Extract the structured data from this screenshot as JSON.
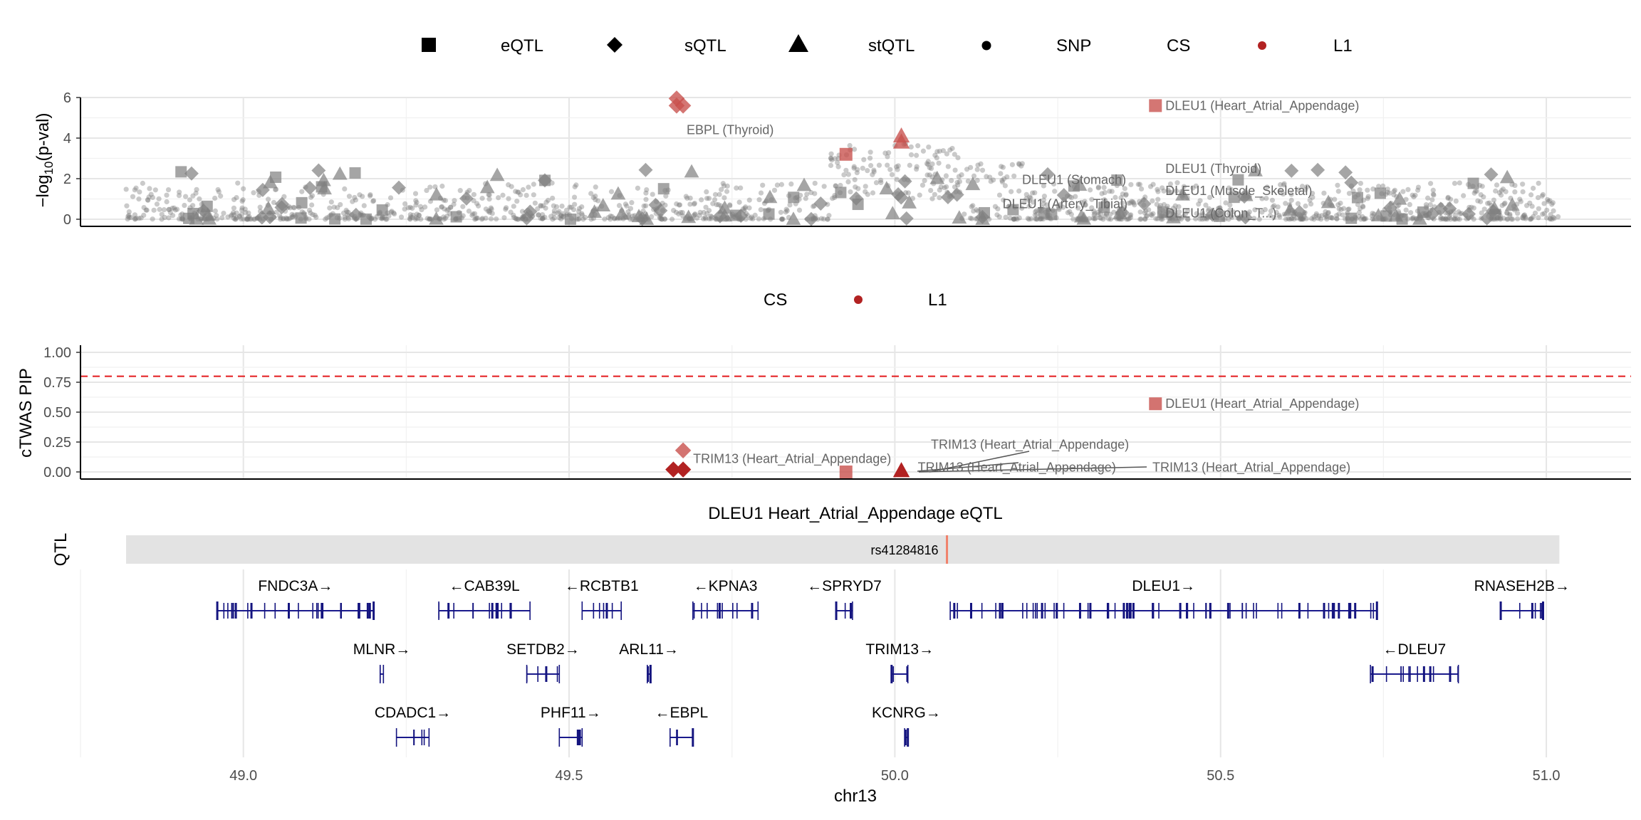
{
  "chart_data": [
    {
      "type": "scatter",
      "panel": "qtl",
      "ylabel": "−log10(p-val)",
      "ylim": [
        0,
        6
      ],
      "y_ticks": [
        0,
        2,
        4,
        6
      ],
      "legend": {
        "shapes": [
          {
            "shape": "square",
            "label": "eQTL"
          },
          {
            "shape": "diamond",
            "label": "sQTL"
          },
          {
            "shape": "triangle",
            "label": "stQTL"
          },
          {
            "shape": "circle",
            "label": "SNP"
          }
        ],
        "cs_title": "CS",
        "cs_items": [
          {
            "label": "L1",
            "color": "#b22222"
          }
        ]
      },
      "highlighted": [
        {
          "x": 49.665,
          "y": 5.95,
          "shape": "diamond",
          "cs": "L1"
        },
        {
          "x": 49.675,
          "y": 5.6,
          "shape": "diamond",
          "cs": "L1"
        },
        {
          "x": 49.665,
          "y": 5.6,
          "shape": "diamond",
          "cs": "L1"
        },
        {
          "x": 49.925,
          "y": 3.2,
          "shape": "square",
          "cs": "L1"
        },
        {
          "x": 50.01,
          "y": 4.1,
          "shape": "triangle",
          "cs": "L1"
        },
        {
          "x": 50.01,
          "y": 3.8,
          "shape": "triangle",
          "cs": "L1"
        },
        {
          "x": 50.4,
          "y": 5.6,
          "shape": "square",
          "cs": "L1"
        }
      ],
      "labels": [
        {
          "x": 50.4,
          "y": 5.6,
          "text": "DLEU1 (Heart_Atrial_Appendage)"
        },
        {
          "x": 49.665,
          "y": 4.4,
          "text": "EBPL (Thyroid)"
        },
        {
          "x": 50.4,
          "y": 2.5,
          "text": "DLEU1 (Thyroid)"
        },
        {
          "x": 50.4,
          "y": 1.4,
          "text": "DLEU1 (Muscle_Skeletal)"
        },
        {
          "x": 50.4,
          "y": 0.3,
          "text": "DLEU1 (Colon_T...)"
        },
        {
          "x": 50.18,
          "y": 1.95,
          "text": "DLEU1 (Stomach)"
        },
        {
          "x": 50.15,
          "y": 0.75,
          "text": "DLEU1 (Artery_Tibial)"
        }
      ]
    },
    {
      "type": "scatter",
      "panel": "ctwas",
      "ylabel": "cTWAS PIP",
      "ylim": [
        0,
        1
      ],
      "y_ticks": [
        "0.00",
        "0.25",
        "0.50",
        "0.75",
        "1.00"
      ],
      "threshold": 0.8,
      "threshold_color": "#e31a1c",
      "legend": {
        "cs_title": "CS",
        "cs_items": [
          {
            "label": "L1",
            "color": "#b22222"
          }
        ]
      },
      "points": [
        {
          "x": 49.675,
          "y": 0.18,
          "shape": "diamond",
          "cs": "L1"
        },
        {
          "x": 49.66,
          "y": 0.02,
          "shape": "diamond",
          "cs": "L1"
        },
        {
          "x": 49.675,
          "y": 0.02,
          "shape": "diamond",
          "cs": "L1"
        },
        {
          "x": 49.925,
          "y": 0.0,
          "shape": "square",
          "cs": "L1"
        },
        {
          "x": 50.01,
          "y": 0.01,
          "shape": "triangle",
          "cs": "L1"
        },
        {
          "x": 50.4,
          "y": 0.57,
          "shape": "square",
          "cs": "L1"
        }
      ],
      "labels": [
        {
          "x": 50.4,
          "y": 0.57,
          "text": "DLEU1 (Heart_Atrial_Appendage)"
        },
        {
          "x": 49.675,
          "y": 0.11,
          "text": "TRIM13 (Heart_Atrial_Appendage)"
        },
        {
          "x": 50.04,
          "y": 0.23,
          "text": "TRIM13 (Heart_Atrial_Appendage)"
        },
        {
          "x": 50.02,
          "y": 0.04,
          "text": "TRIM13 (Heart_Atrial_Appendage)"
        },
        {
          "x": 50.38,
          "y": 0.04,
          "text": "TRIM13 (Heart_Atrial_Appendage)"
        }
      ]
    },
    {
      "type": "track",
      "panel": "qtl-track",
      "title": "DLEU1 Heart_Atrial_Appendage eQTL",
      "ylabel": "QTL",
      "range": [
        48.82,
        51.02
      ],
      "snp": {
        "x": 50.08,
        "label": "rs41284816"
      }
    },
    {
      "type": "gene-track",
      "panel": "genes",
      "xlabel": "chr13",
      "xlim": [
        48.75,
        51.13
      ],
      "x_ticks": [
        "49.0",
        "49.5",
        "50.0",
        "50.5",
        "51.0"
      ],
      "genes": [
        {
          "label": "FNDC3A→",
          "start": 48.96,
          "end": 49.2,
          "row": 0
        },
        {
          "label": "←CAB39L",
          "start": 49.3,
          "end": 49.44,
          "row": 0
        },
        {
          "label": "←RCBTB1",
          "start": 49.52,
          "end": 49.58,
          "row": 0
        },
        {
          "label": "←KPNA3",
          "start": 49.69,
          "end": 49.79,
          "row": 0
        },
        {
          "label": "←SPRYD7",
          "start": 49.91,
          "end": 49.935,
          "row": 0
        },
        {
          "label": "DLEU1→",
          "start": 50.085,
          "end": 50.74,
          "row": 0
        },
        {
          "label": "RNASEH2B→",
          "start": 50.93,
          "end": 50.995,
          "row": 0
        },
        {
          "label": "MLNR→",
          "start": 49.21,
          "end": 49.215,
          "row": 1
        },
        {
          "label": "SETDB2→",
          "start": 49.435,
          "end": 49.485,
          "row": 1
        },
        {
          "label": "ARL11→",
          "start": 49.62,
          "end": 49.625,
          "row": 1
        },
        {
          "label": "TRIM13→",
          "start": 49.995,
          "end": 50.02,
          "row": 1
        },
        {
          "label": "←DLEU7",
          "start": 50.73,
          "end": 50.865,
          "row": 1
        },
        {
          "label": "CDADC1→",
          "start": 49.235,
          "end": 49.285,
          "row": 2
        },
        {
          "label": "PHF11→",
          "start": 49.485,
          "end": 49.52,
          "row": 2
        },
        {
          "label": "←EBPL",
          "start": 49.655,
          "end": 49.69,
          "row": 2
        },
        {
          "label": "KCNRG→",
          "start": 50.015,
          "end": 50.02,
          "row": 2
        }
      ]
    }
  ]
}
